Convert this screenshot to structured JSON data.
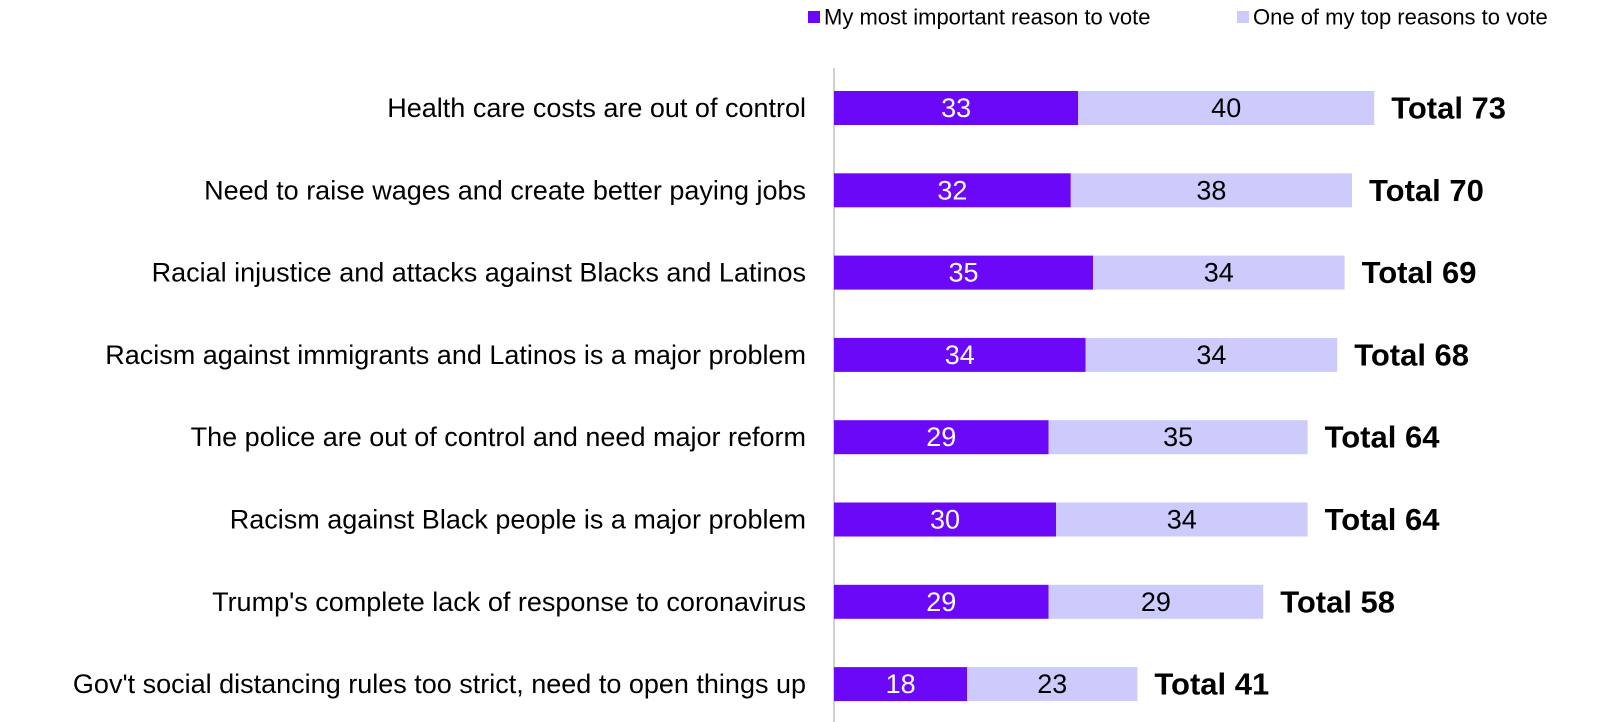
{
  "chart_data": {
    "type": "bar",
    "orientation": "horizontal",
    "stacked": true,
    "categories": [
      "Health care costs are out of control",
      "Need to raise wages and create better paying jobs",
      "Racial injustice and attacks against Blacks and Latinos",
      "Racism against immigrants and Latinos is a major problem",
      "The police are out of control and need major reform",
      "Racism against Black people is a major problem",
      "Trump's complete lack of response to coronavirus",
      "Gov't social distancing rules too strict, need to open things up"
    ],
    "series": [
      {
        "name": "My most important reason to vote",
        "color": "#6b08f8",
        "label_color": "#ffffff",
        "values": [
          33,
          32,
          35,
          34,
          29,
          30,
          29,
          18
        ]
      },
      {
        "name": "One of my top reasons to vote",
        "color": "#cccbfc",
        "label_color": "#000000",
        "values": [
          40,
          38,
          34,
          34,
          35,
          34,
          29,
          23
        ]
      }
    ],
    "totals": [
      "Total 73",
      "Total 70",
      "Total 69",
      "Total 68",
      "Total 64",
      "Total 64",
      "Total 58",
      "Total 41"
    ],
    "legend_position": "top-right",
    "grid": false
  }
}
